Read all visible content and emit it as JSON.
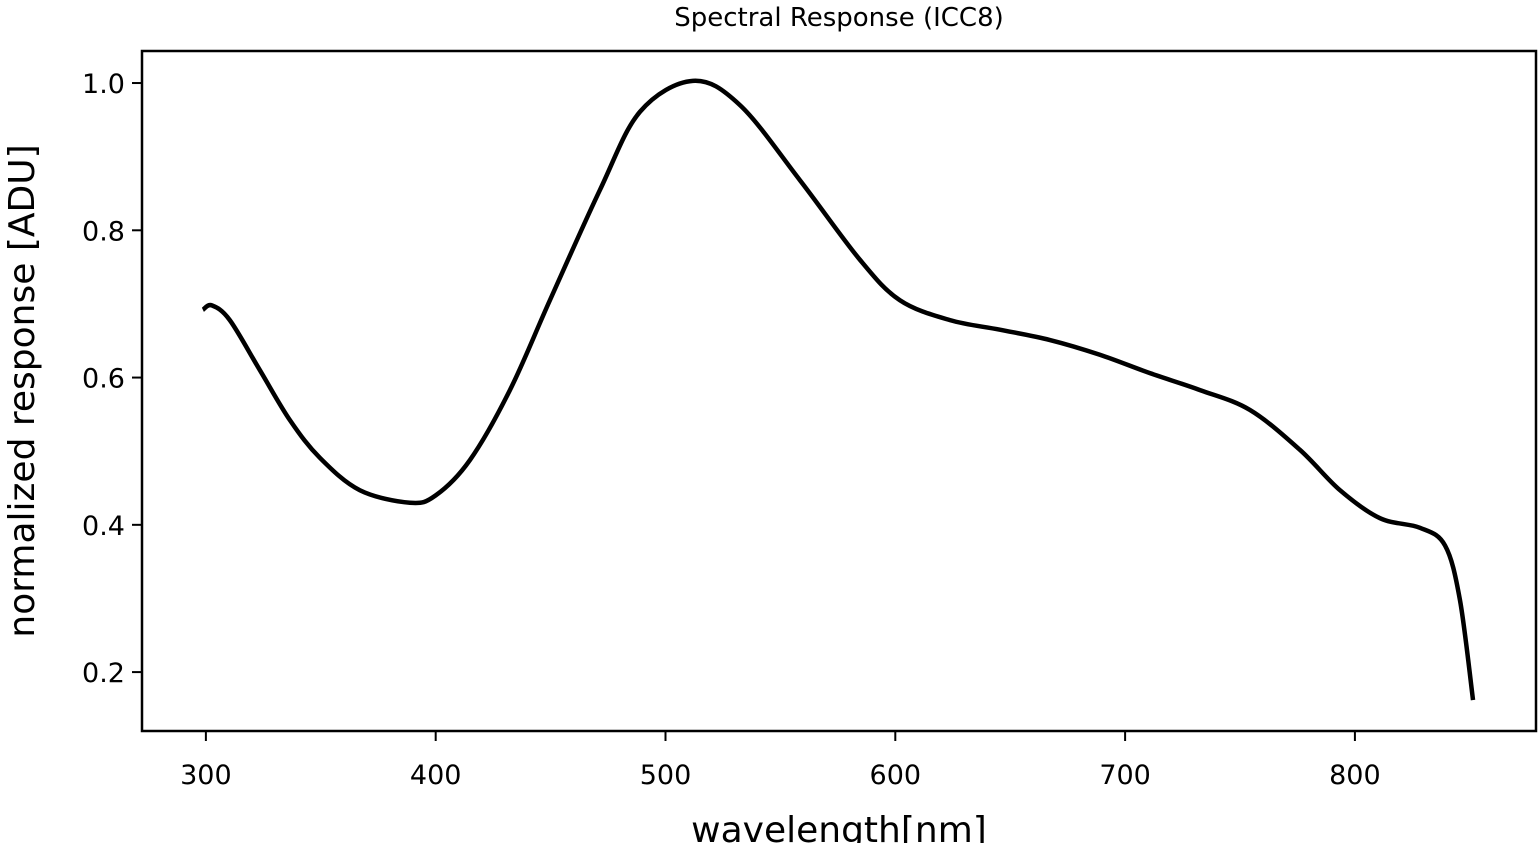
{
  "chart_data": {
    "type": "line",
    "title": "Spectral Response (ICC8)",
    "xlabel": "wavelength[nm]",
    "ylabel": "normalized response [ADU]",
    "xlim": [
      272.2,
      878.8
    ],
    "ylim": [
      0.12,
      1.0435
    ],
    "xticks": [
      300,
      400,
      500,
      600,
      700,
      800
    ],
    "xtick_labels": [
      "300",
      "400",
      "500",
      "600",
      "700",
      "800"
    ],
    "yticks": [
      0.2,
      0.4,
      0.6,
      0.8,
      1.0
    ],
    "ytick_labels": [
      "0.2",
      "0.4",
      "0.6",
      "0.8",
      "1.0"
    ],
    "grid": false,
    "series": [
      {
        "name": "response",
        "color": "#000000",
        "x": [
          298.7,
          302.6,
          310.4,
          323.5,
          336.6,
          349.6,
          367,
          388.8,
          400,
          414.9,
          432.3,
          449.7,
          471.5,
          488.9,
          511.9,
          532.4,
          558.5,
          584.6,
          602,
          623.8,
          645.5,
          667.3,
          689,
          710.8,
          732.6,
          754.3,
          776,
          793.5,
          810.9,
          828.3,
          839.2,
          845.7,
          851.4
        ],
        "y": [
          0.692,
          0.698,
          0.678,
          0.61,
          0.542,
          0.491,
          0.447,
          0.43,
          0.44,
          0.488,
          0.583,
          0.705,
          0.855,
          0.961,
          1.003,
          0.97,
          0.868,
          0.76,
          0.705,
          0.678,
          0.665,
          0.651,
          0.631,
          0.606,
          0.583,
          0.556,
          0.502,
          0.447,
          0.409,
          0.396,
          0.372,
          0.298,
          0.162
        ]
      }
    ]
  }
}
